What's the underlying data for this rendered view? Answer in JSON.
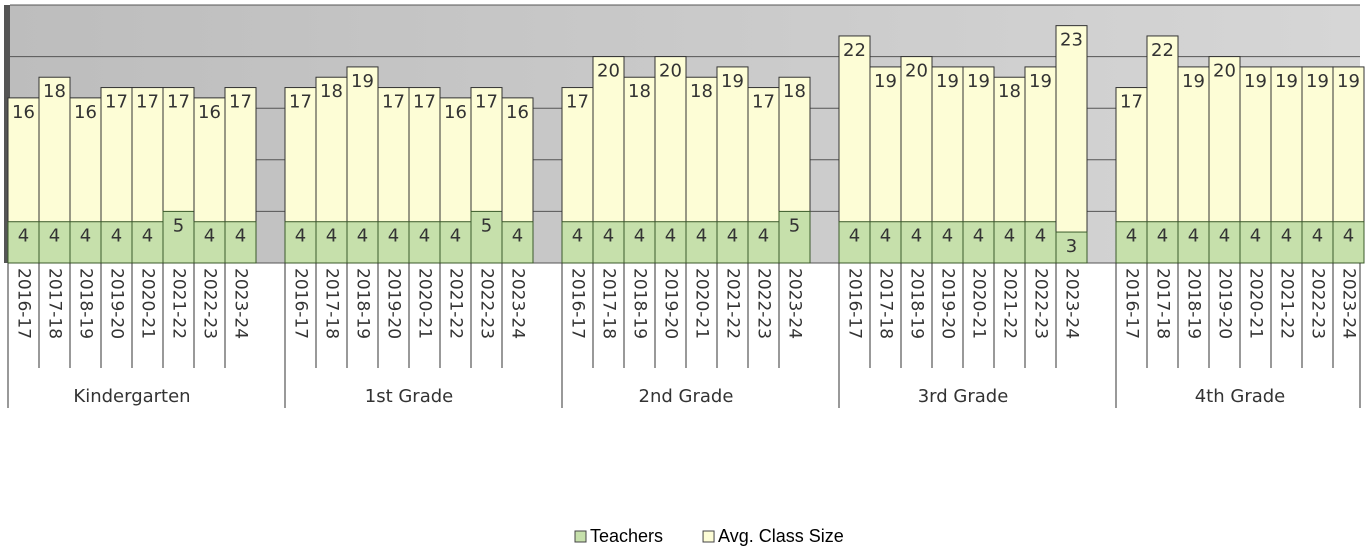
{
  "chart_data": {
    "type": "bar",
    "groups": [
      {
        "name": "Kindergarten",
        "categories": [
          "2016-17",
          "2017-18",
          "2018-19",
          "2019-20",
          "2020-21",
          "2021-22",
          "2022-23",
          "2023-24"
        ]
      },
      {
        "name": "1st Grade",
        "categories": [
          "2016-17",
          "2017-18",
          "2018-19",
          "2019-20",
          "2020-21",
          "2021-22",
          "2022-23",
          "2023-24"
        ]
      },
      {
        "name": "2nd Grade",
        "categories": [
          "2016-17",
          "2017-18",
          "2018-19",
          "2019-20",
          "2020-21",
          "2021-22",
          "2022-23",
          "2023-24"
        ]
      },
      {
        "name": "3rd Grade",
        "categories": [
          "2016-17",
          "2017-18",
          "2018-19",
          "2019-20",
          "2020-21",
          "2021-22",
          "2022-23",
          "2023-24"
        ]
      },
      {
        "name": "4th Grade",
        "categories": [
          "2016-17",
          "2017-18",
          "2018-19",
          "2019-20",
          "2020-21",
          "2021-22",
          "2022-23",
          "2023-24"
        ]
      }
    ],
    "series": [
      {
        "name": "Avg. Class Size",
        "color": "#fdfdd6",
        "values": [
          16,
          18,
          16,
          17,
          17,
          17,
          16,
          17,
          17,
          18,
          19,
          17,
          17,
          16,
          17,
          16,
          17,
          20,
          18,
          20,
          18,
          19,
          17,
          18,
          22,
          19,
          20,
          19,
          19,
          18,
          19,
          23,
          17,
          22,
          19,
          20,
          19,
          19,
          19,
          19
        ]
      },
      {
        "name": "Teachers",
        "color": "#c6e0ab",
        "values": [
          4,
          4,
          4,
          4,
          4,
          5,
          4,
          4,
          4,
          4,
          4,
          4,
          4,
          4,
          5,
          4,
          4,
          4,
          4,
          4,
          4,
          4,
          4,
          5,
          4,
          4,
          4,
          4,
          4,
          4,
          4,
          3,
          4,
          4,
          4,
          4,
          4,
          4,
          4,
          4
        ]
      }
    ],
    "legend_order": [
      "Teachers",
      "Avg. Class Size"
    ],
    "ylim": [
      0,
      25
    ],
    "yticks": [
      0,
      5,
      10,
      15,
      20,
      25
    ],
    "grid": true
  }
}
